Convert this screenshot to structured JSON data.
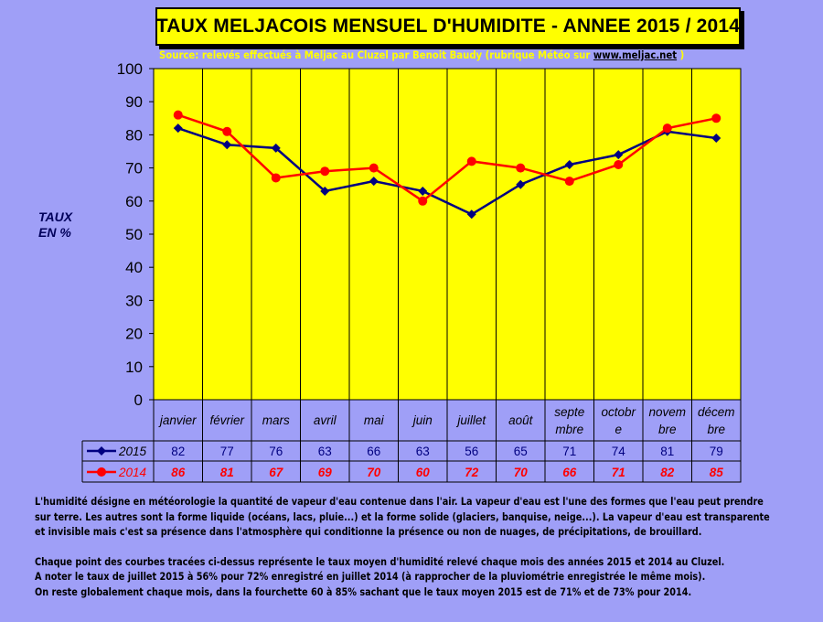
{
  "title": "TAUX MELJACOIS MENSUEL  D'HUMIDITE - ANNEE 2015 / 2014",
  "source": {
    "prefix": "Source: relevés effectués à Meljac au Cluzel par Benoit Baudy (rubrique Météo sur ",
    "link": "www.meljac.net",
    "suffix": " )"
  },
  "ylabel_line1": "TAUX",
  "ylabel_line2": "EN %",
  "colors": {
    "background": "#9f9ff7",
    "plot": "#ffff00",
    "series_2015": "#000080",
    "series_2014": "#ff0000"
  },
  "chart_data": {
    "type": "line",
    "title": "TAUX MELJACOIS MENSUEL  D'HUMIDITE - ANNEE 2015 / 2014",
    "ylabel": "TAUX EN %",
    "ylim": [
      0,
      100
    ],
    "yticks": [
      0,
      10,
      20,
      30,
      40,
      50,
      60,
      70,
      80,
      90,
      100
    ],
    "grid": "vertical",
    "categories": [
      [
        "janvier"
      ],
      [
        "février"
      ],
      [
        "mars"
      ],
      [
        "avril"
      ],
      [
        "mai"
      ],
      [
        "juin"
      ],
      [
        "juillet"
      ],
      [
        "août"
      ],
      [
        "septe",
        "mbre"
      ],
      [
        "octobr",
        "e"
      ],
      [
        "novem",
        "bre"
      ],
      [
        "décem",
        "bre"
      ]
    ],
    "series": [
      {
        "name": "2015",
        "color": "#000080",
        "marker": "diamond",
        "values": [
          82,
          77,
          76,
          63,
          66,
          63,
          56,
          65,
          71,
          74,
          81,
          79
        ]
      },
      {
        "name": "2014",
        "color": "#ff0000",
        "marker": "circle",
        "values": [
          86,
          81,
          67,
          69,
          70,
          60,
          72,
          70,
          66,
          71,
          82,
          85
        ]
      }
    ]
  },
  "notes": [
    "L'humidité désigne en météorologie la quantité de vapeur d'eau contenue dans l'air. La vapeur d'eau est l'une des formes que l'eau peut prendre",
    "sur terre. Les autres sont la forme liquide (océans, lacs, pluie...) et la forme solide (glaciers, banquise, neige...). La vapeur d'eau est transparente",
    "et invisible mais c'est sa présence dans l'atmosphère qui conditionne la présence ou non de nuages, de précipitations, de brouillard.",
    "",
    "Chaque point des courbes tracées ci-dessus représente le taux moyen d'humidité relevé chaque mois des années 2015 et 2014 au Cluzel.",
    "A noter le taux de juillet 2015 à 56% pour 72% enregistré en juillet 2014 (à rapprocher de la pluviométrie enregistrée le même mois).",
    "On reste globalement chaque mois, dans la fourchette 60 à 85% sachant que le taux moyen 2015 est de 71% et de 73% pour 2014."
  ]
}
